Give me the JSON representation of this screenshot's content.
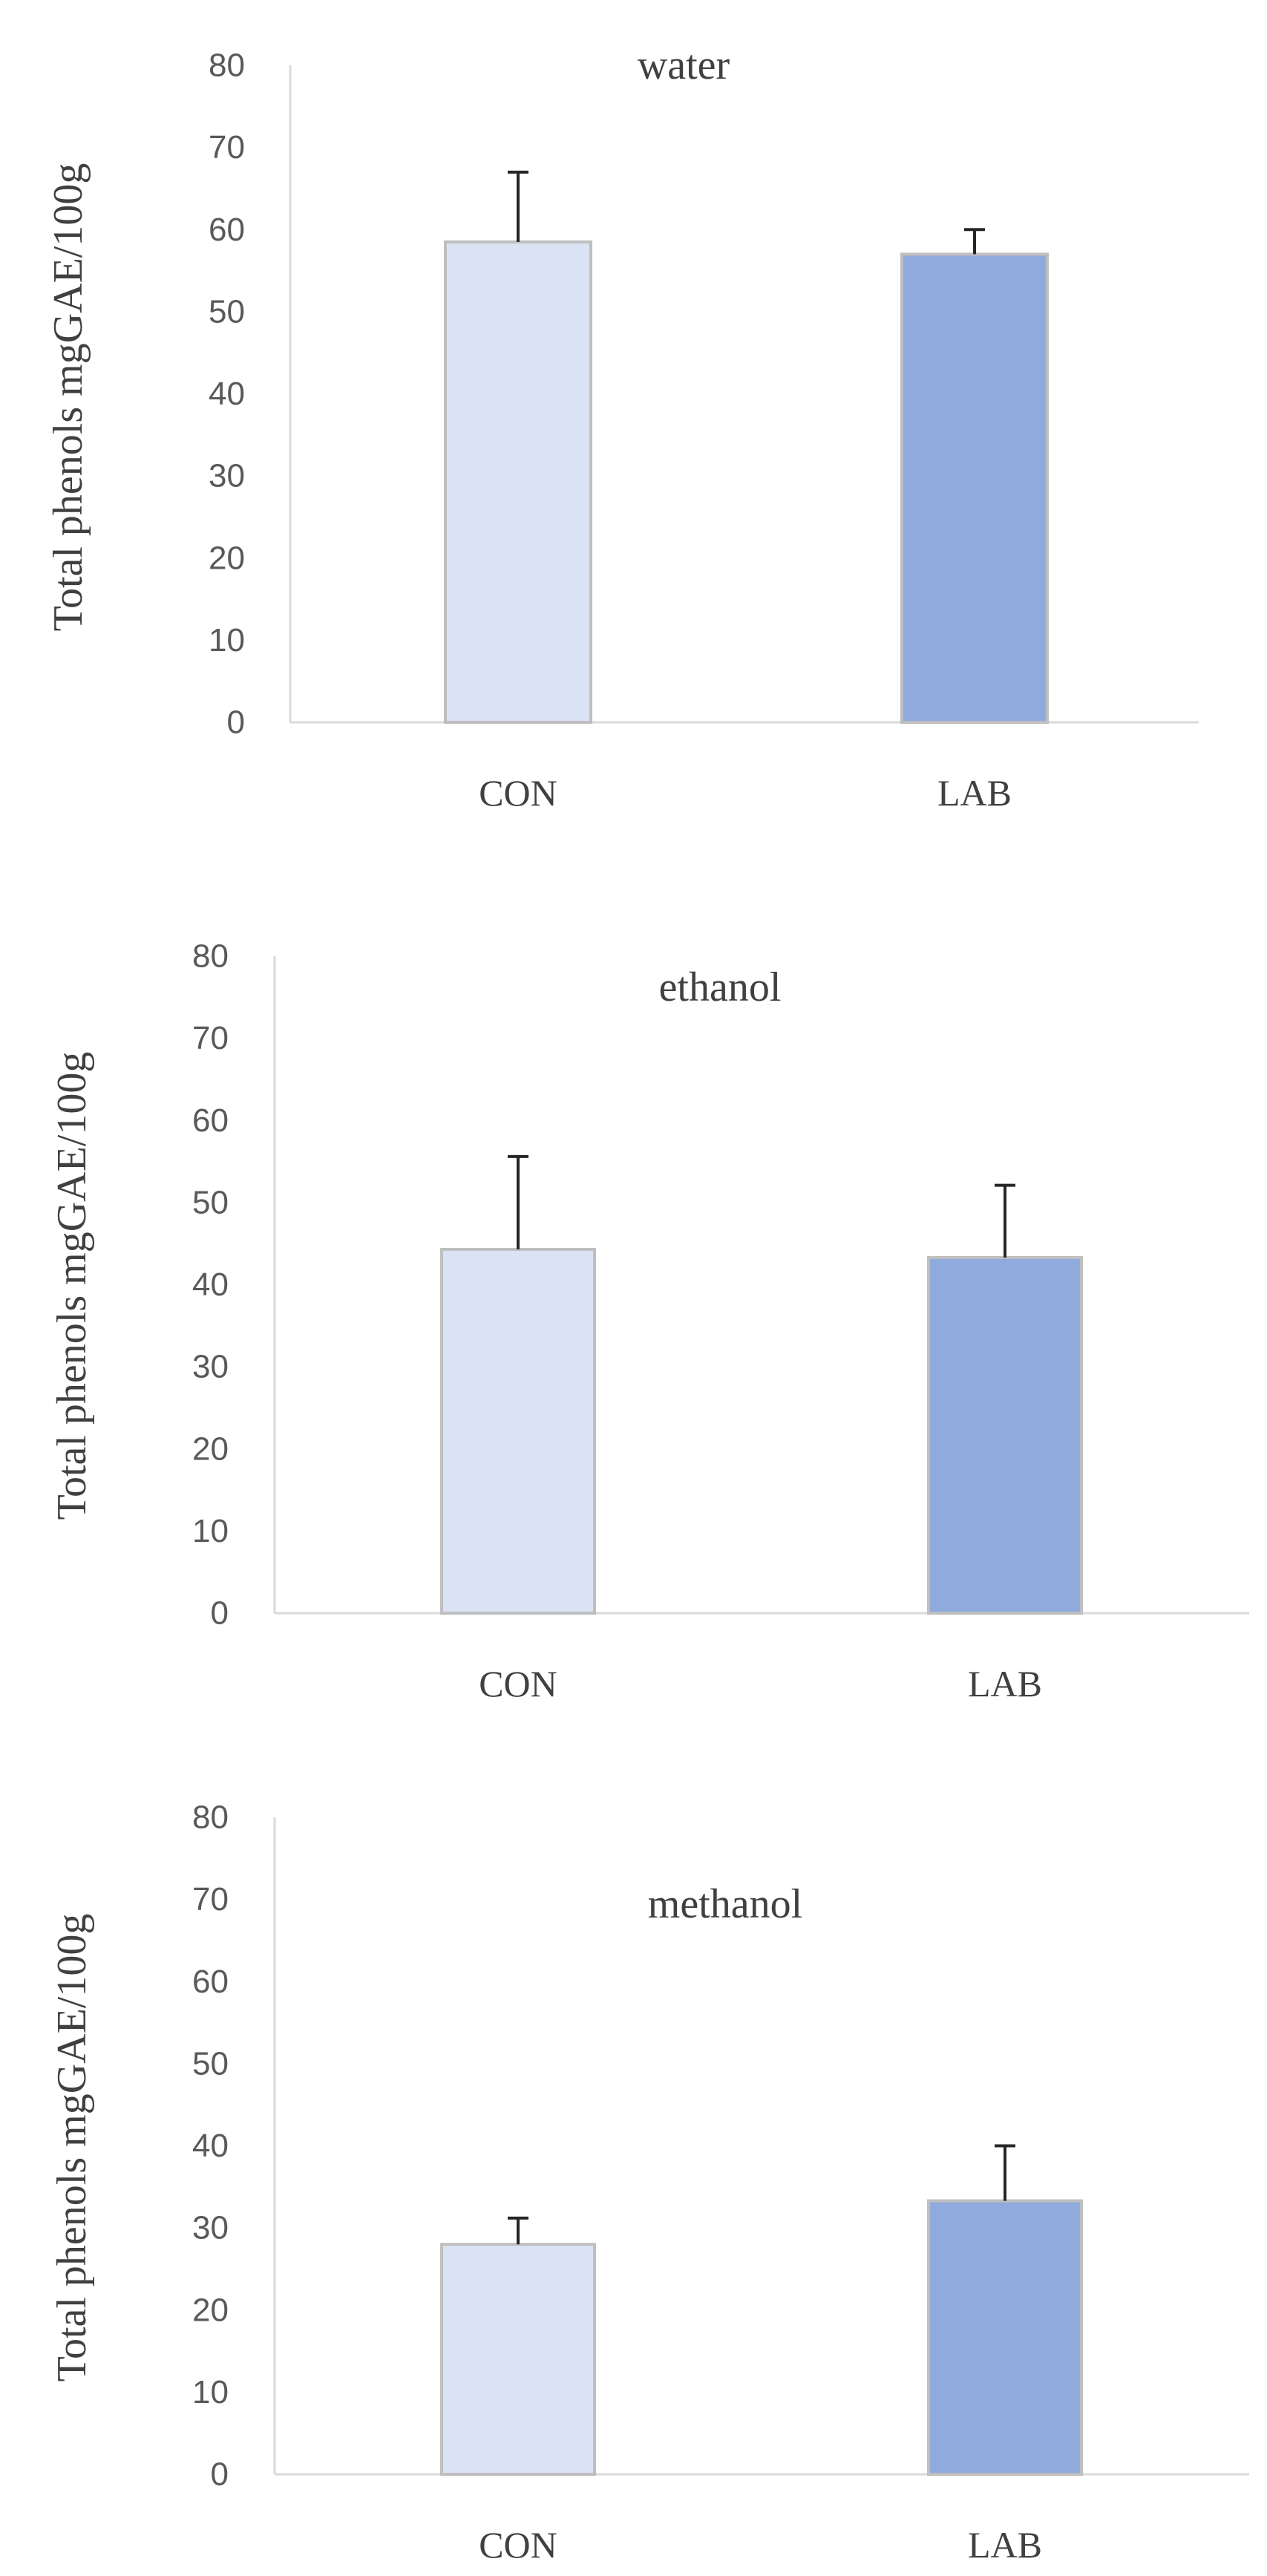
{
  "chart_data": [
    {
      "type": "bar",
      "title": "water",
      "categories": [
        "CON",
        "LAB"
      ],
      "values": [
        58.5,
        57.0
      ],
      "error_plus": [
        8.5,
        3.0
      ],
      "xlabel": "",
      "ylabel": "Total phenols mgGAE/100g",
      "ylim": [
        0,
        80
      ],
      "yticks": [
        0,
        10,
        20,
        30,
        40,
        50,
        60,
        70,
        80
      ],
      "bar_colors": [
        "#dae3f3",
        "#8faadc"
      ],
      "grid": false
    },
    {
      "type": "bar",
      "title": "ethanol",
      "categories": [
        "CON",
        "LAB"
      ],
      "values": [
        44.3,
        43.3
      ],
      "error_plus": [
        11.3,
        8.8
      ],
      "xlabel": "",
      "ylabel": "Total phenols mgGAE/100g",
      "ylim": [
        0,
        80
      ],
      "yticks": [
        0,
        10,
        20,
        30,
        40,
        50,
        60,
        70,
        80
      ],
      "bar_colors": [
        "#dae3f3",
        "#8faadc"
      ],
      "grid": false
    },
    {
      "type": "bar",
      "title": "methanol",
      "categories": [
        "CON",
        "LAB"
      ],
      "values": [
        28.0,
        33.3
      ],
      "error_plus": [
        3.2,
        6.7
      ],
      "xlabel": "",
      "ylabel": "Total phenols mgGAE/100g",
      "ylim": [
        0,
        80
      ],
      "yticks": [
        0,
        10,
        20,
        30,
        40,
        50,
        60,
        70,
        80
      ],
      "bar_colors": [
        "#dae3f3",
        "#8faadc"
      ],
      "grid": false
    }
  ]
}
